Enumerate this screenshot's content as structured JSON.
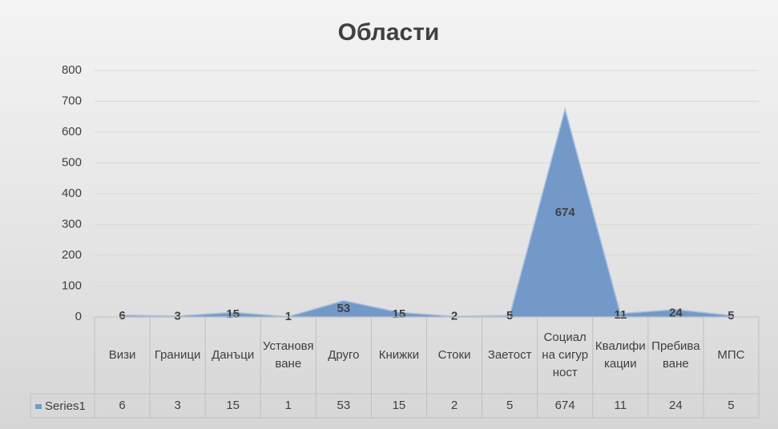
{
  "chart_data": {
    "type": "area",
    "title": "Области",
    "categories": [
      "Визи",
      "Граници",
      "Данъци",
      "Установяване",
      "Друго",
      "Книжки",
      "Стоки",
      "Заетост",
      "Социал на сигурност",
      "Квалификации",
      "Пребиваване",
      "МПС"
    ],
    "series": [
      {
        "name": "Series1",
        "color": "#7399c9",
        "values": [
          6,
          3,
          15,
          1,
          53,
          15,
          2,
          5,
          674,
          11,
          24,
          5
        ]
      }
    ],
    "ylim": [
      0,
      800
    ],
    "yticks": [
      0,
      100,
      200,
      300,
      400,
      500,
      600,
      700,
      800
    ],
    "grid": true,
    "data_table": true
  }
}
